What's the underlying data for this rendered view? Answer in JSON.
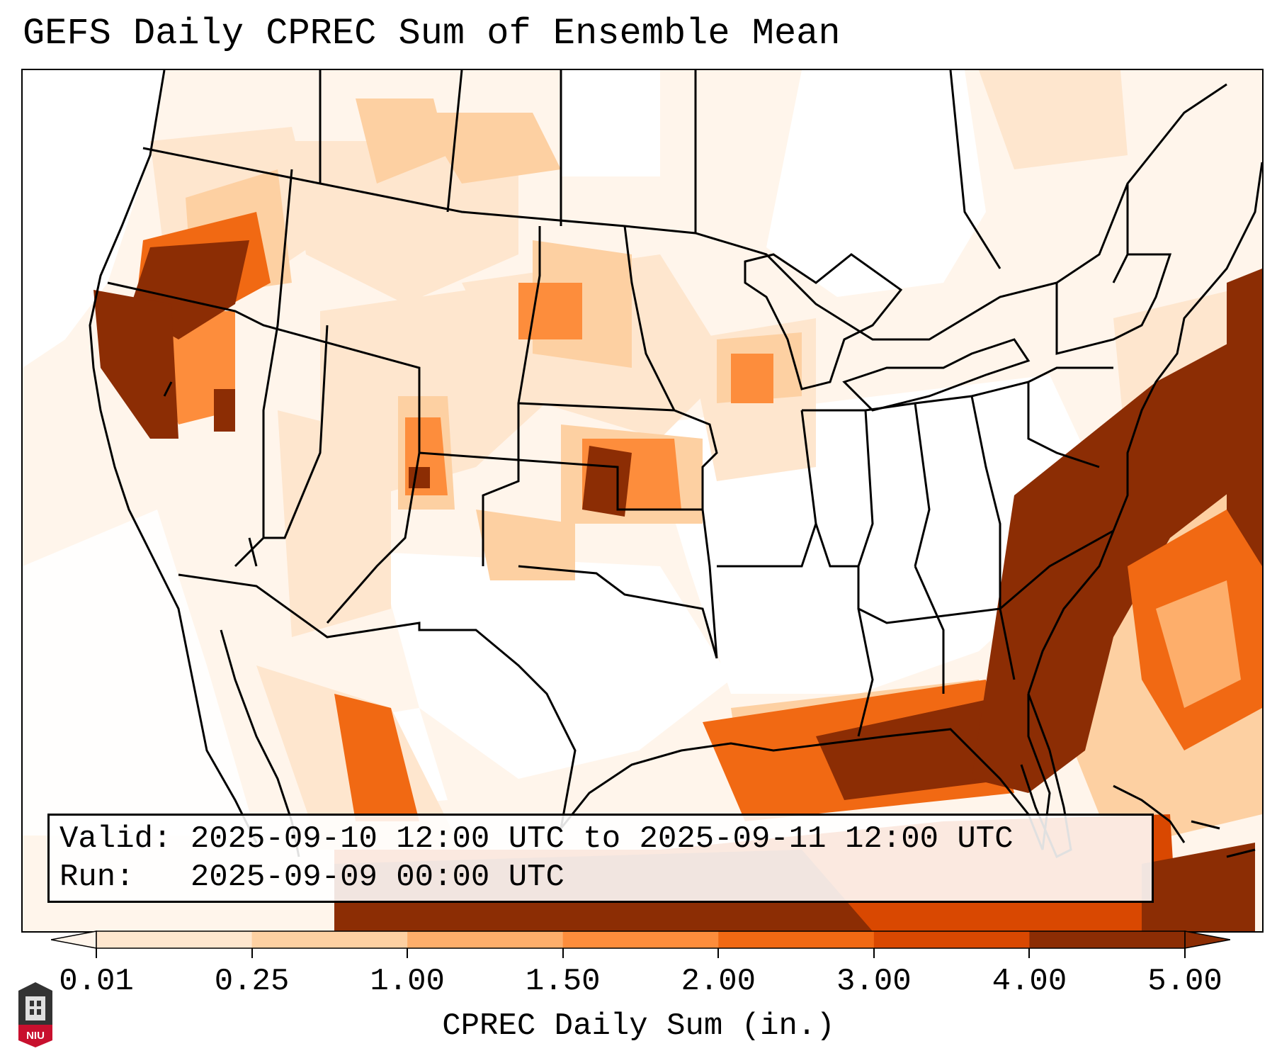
{
  "title": "GEFS Daily CPREC Sum of Ensemble Mean",
  "valid_box": {
    "valid_line": "Valid: 2025-09-10 12:00 UTC to 2025-09-11 12:00 UTC",
    "run_line": "Run:   2025-09-09 00:00 UTC"
  },
  "colorbar": {
    "label": "CPREC Daily Sum (in.)",
    "ticks": [
      "0.01",
      "0.25",
      "1.00",
      "1.50",
      "2.00",
      "3.00",
      "4.00",
      "5.00"
    ],
    "colors": [
      "#fff5eb",
      "#fee6ce",
      "#fdd0a2",
      "#fdae6b",
      "#fd8d3c",
      "#f16913",
      "#d94801",
      "#8c2d04"
    ],
    "extend": "both"
  },
  "logo": {
    "text": "NIU",
    "color": "#c8102e"
  },
  "colors": {
    "light": "#fff5eb",
    "pale": "#fee6ce",
    "tan": "#fdd0a2",
    "orange_light": "#fdae6b",
    "orange": "#fd8d3c",
    "orange_dark": "#f16913",
    "red_orange": "#d94801",
    "brown": "#8c2d04"
  }
}
